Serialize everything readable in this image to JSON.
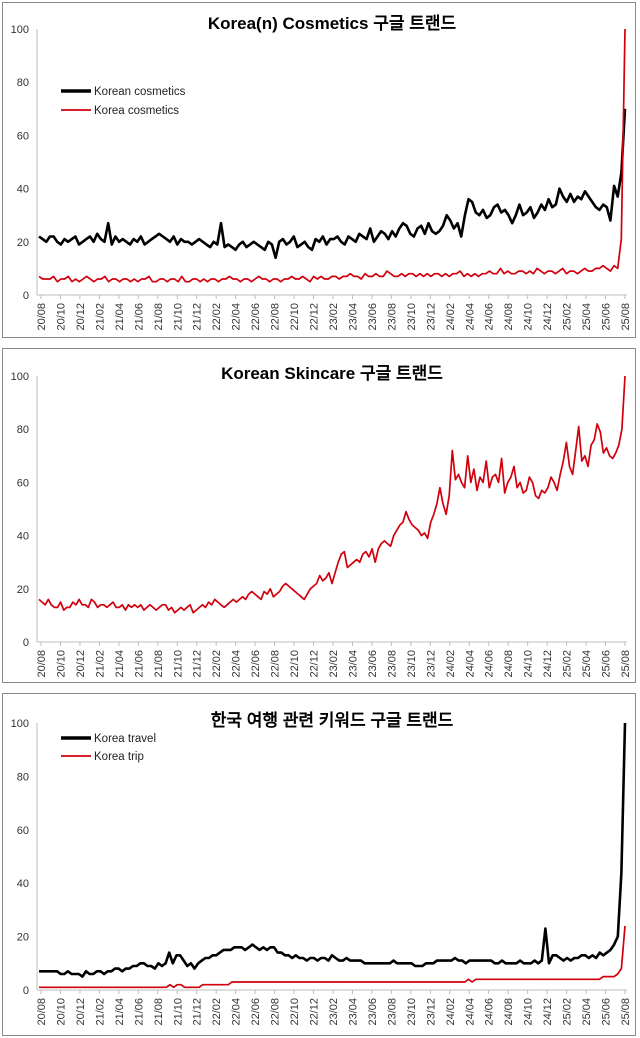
{
  "chart_data": [
    {
      "type": "line",
      "title": "Korea(n) Cosmetics 구글 트랜드",
      "ylim": [
        0,
        100
      ],
      "y_ticks": [
        0,
        20,
        40,
        60,
        80,
        100
      ],
      "x_tick_labels": [
        "20/08",
        "20/10",
        "20/12",
        "21/02",
        "21/04",
        "21/06",
        "21/08",
        "21/10",
        "21/12",
        "22/02",
        "22/04",
        "22/06",
        "22/08",
        "22/10",
        "22/12",
        "23/02",
        "23/04",
        "23/06",
        "23/08",
        "23/10",
        "23/12",
        "24/02",
        "24/04",
        "24/06",
        "24/08",
        "24/10",
        "24/12",
        "25/02",
        "25/04",
        "25/06",
        "25/08"
      ],
      "grid": false,
      "legend": "top-left",
      "series": [
        {
          "name": "Korean cosmetics",
          "color": "#000000",
          "values": [
            22,
            21,
            20,
            22,
            22,
            20,
            19,
            21,
            20,
            21,
            22,
            19,
            20,
            21,
            22,
            20,
            23,
            21,
            20,
            27,
            19,
            22,
            20,
            21,
            20,
            19,
            21,
            20,
            22,
            19,
            20,
            21,
            22,
            23,
            22,
            21,
            20,
            22,
            19,
            21,
            20,
            20,
            19,
            20,
            21,
            20,
            19,
            18,
            20,
            19,
            27,
            18,
            19,
            18,
            17,
            19,
            20,
            18,
            19,
            20,
            19,
            18,
            17,
            20,
            19,
            14,
            20,
            21,
            19,
            20,
            22,
            18,
            19,
            20,
            18,
            17,
            21,
            20,
            22,
            19,
            21,
            21,
            22,
            20,
            19,
            22,
            21,
            20,
            23,
            22,
            21,
            25,
            20,
            22,
            24,
            23,
            21,
            24,
            22,
            25,
            27,
            26,
            23,
            22,
            25,
            26,
            23,
            27,
            24,
            23,
            24,
            26,
            30,
            28,
            25,
            27,
            22,
            30,
            36,
            35,
            31,
            30,
            32,
            29,
            30,
            33,
            34,
            31,
            32,
            30,
            27,
            30,
            34,
            30,
            31,
            33,
            29,
            31,
            34,
            32,
            36,
            33,
            34,
            40,
            37,
            35,
            38,
            35,
            37,
            36,
            39,
            37,
            35,
            33,
            32,
            34,
            33,
            28,
            41,
            37,
            46,
            70
          ]
        },
        {
          "name": "Korea cosmetics",
          "color": "#d0000d",
          "values": [
            7,
            6,
            6,
            6,
            7,
            5,
            6,
            6,
            7,
            5,
            6,
            5,
            6,
            7,
            6,
            5,
            6,
            6,
            7,
            5,
            6,
            6,
            5,
            6,
            6,
            5,
            6,
            5,
            6,
            6,
            7,
            5,
            5,
            6,
            6,
            5,
            6,
            6,
            5,
            7,
            5,
            5,
            6,
            6,
            5,
            6,
            5,
            6,
            6,
            5,
            6,
            6,
            7,
            6,
            6,
            5,
            6,
            6,
            5,
            6,
            7,
            6,
            6,
            5,
            6,
            6,
            5,
            6,
            6,
            7,
            6,
            6,
            7,
            6,
            5,
            7,
            6,
            7,
            6,
            6,
            7,
            7,
            6,
            7,
            7,
            8,
            7,
            7,
            6,
            8,
            7,
            7,
            8,
            7,
            7,
            9,
            8,
            7,
            7,
            8,
            7,
            8,
            8,
            7,
            8,
            7,
            8,
            7,
            8,
            8,
            7,
            8,
            7,
            8,
            8,
            9,
            7,
            8,
            7,
            8,
            7,
            8,
            8,
            9,
            8,
            8,
            10,
            8,
            9,
            8,
            8,
            9,
            9,
            8,
            9,
            8,
            10,
            9,
            8,
            9,
            9,
            8,
            9,
            10,
            8,
            9,
            9,
            8,
            9,
            10,
            9,
            9,
            10,
            10,
            11,
            10,
            9,
            11,
            10,
            21,
            100
          ]
        }
      ]
    },
    {
      "type": "line",
      "title": "Korean Skincare 구글 트랜드",
      "ylim": [
        0,
        100
      ],
      "y_ticks": [
        0,
        20,
        40,
        60,
        80,
        100
      ],
      "x_tick_labels": [
        "20/08",
        "20/10",
        "20/12",
        "21/02",
        "21/04",
        "21/06",
        "21/08",
        "21/10",
        "21/12",
        "22/02",
        "22/04",
        "22/06",
        "22/08",
        "22/10",
        "22/12",
        "23/02",
        "23/04",
        "23/06",
        "23/08",
        "23/10",
        "23/12",
        "24/02",
        "24/04",
        "24/06",
        "24/08",
        "24/10",
        "24/12",
        "25/02",
        "25/04",
        "25/06",
        "25/08"
      ],
      "grid": false,
      "series": [
        {
          "name": "",
          "color": "#d0000d",
          "values": [
            16,
            15,
            14,
            16,
            14,
            13,
            13,
            15,
            12,
            13,
            13,
            15,
            14,
            16,
            14,
            14,
            13,
            16,
            15,
            13,
            14,
            14,
            13,
            14,
            15,
            13,
            13,
            14,
            12,
            14,
            13,
            14,
            13,
            14,
            12,
            13,
            14,
            13,
            12,
            13,
            14,
            14,
            12,
            13,
            11,
            12,
            13,
            12,
            13,
            14,
            11,
            12,
            13,
            14,
            13,
            15,
            14,
            16,
            15,
            14,
            13,
            14,
            15,
            16,
            15,
            16,
            17,
            16,
            18,
            19,
            18,
            17,
            16,
            19,
            18,
            20,
            17,
            18,
            19,
            21,
            22,
            21,
            20,
            19,
            18,
            17,
            16,
            18,
            20,
            21,
            22,
            25,
            23,
            24,
            26,
            22,
            26,
            30,
            33,
            34,
            28,
            29,
            30,
            31,
            30,
            33,
            34,
            32,
            35,
            30,
            35,
            37,
            38,
            37,
            36,
            40,
            42,
            44,
            45,
            49,
            46,
            44,
            43,
            42,
            40,
            41,
            39,
            45,
            48,
            52,
            58,
            52,
            48,
            55,
            72,
            61,
            63,
            60,
            58,
            70,
            60,
            65,
            57,
            62,
            60,
            68,
            58,
            62,
            63,
            60,
            69,
            56,
            60,
            62,
            66,
            58,
            60,
            56,
            57,
            62,
            60,
            55,
            54,
            57,
            56,
            58,
            62,
            60,
            57,
            63,
            68,
            75,
            66,
            63,
            72,
            81,
            68,
            70,
            66,
            74,
            76,
            82,
            79,
            71,
            73,
            70,
            69,
            71,
            74,
            80,
            100
          ]
        }
      ]
    },
    {
      "type": "line",
      "title": "한국 여행 관련 키워드 구글 트랜드",
      "ylim": [
        0,
        100
      ],
      "y_ticks": [
        0,
        20,
        40,
        60,
        80,
        100
      ],
      "x_tick_labels": [
        "20/08",
        "20/10",
        "20/12",
        "21/02",
        "21/04",
        "21/06",
        "21/08",
        "21/10",
        "21/12",
        "22/02",
        "22/04",
        "22/06",
        "22/08",
        "22/10",
        "22/12",
        "23/02",
        "23/04",
        "23/06",
        "23/08",
        "23/10",
        "23/12",
        "24/02",
        "24/04",
        "24/06",
        "24/08",
        "24/10",
        "24/12",
        "25/02",
        "25/04",
        "25/06",
        "25/08"
      ],
      "grid": false,
      "legend": "top-left",
      "series": [
        {
          "name": "Korea travel",
          "color": "#000000",
          "values": [
            7,
            7,
            7,
            7,
            7,
            7,
            6,
            6,
            7,
            6,
            6,
            6,
            5,
            7,
            6,
            6,
            7,
            7,
            6,
            7,
            7,
            8,
            8,
            7,
            8,
            8,
            9,
            9,
            10,
            10,
            9,
            9,
            8,
            10,
            9,
            10,
            14,
            10,
            13,
            13,
            11,
            9,
            10,
            8,
            10,
            11,
            12,
            12,
            13,
            13,
            14,
            15,
            15,
            15,
            16,
            16,
            16,
            15,
            16,
            17,
            16,
            15,
            16,
            15,
            16,
            16,
            14,
            14,
            13,
            13,
            12,
            13,
            12,
            12,
            11,
            12,
            12,
            11,
            12,
            12,
            11,
            13,
            12,
            11,
            11,
            12,
            11,
            11,
            11,
            11,
            10,
            10,
            10,
            10,
            10,
            10,
            10,
            10,
            11,
            10,
            10,
            10,
            10,
            10,
            9,
            9,
            9,
            10,
            10,
            10,
            11,
            11,
            11,
            11,
            11,
            12,
            11,
            11,
            10,
            11,
            11,
            11,
            11,
            11,
            11,
            11,
            10,
            10,
            11,
            10,
            10,
            10,
            10,
            11,
            10,
            10,
            10,
            11,
            10,
            11,
            23,
            10,
            13,
            13,
            12,
            11,
            12,
            11,
            12,
            12,
            13,
            13,
            12,
            13,
            12,
            14,
            13,
            14,
            15,
            17,
            20,
            44,
            100
          ]
        },
        {
          "name": "Korea trip",
          "color": "#d0000d",
          "values": [
            1,
            1,
            1,
            1,
            1,
            1,
            1,
            1,
            1,
            1,
            1,
            1,
            1,
            1,
            1,
            1,
            1,
            1,
            1,
            1,
            1,
            1,
            1,
            1,
            1,
            1,
            1,
            1,
            1,
            1,
            1,
            1,
            1,
            1,
            1,
            1,
            2,
            1,
            2,
            2,
            1,
            1,
            1,
            1,
            1,
            2,
            2,
            2,
            2,
            2,
            2,
            2,
            2,
            3,
            3,
            3,
            3,
            3,
            3,
            3,
            3,
            3,
            3,
            3,
            3,
            3,
            3,
            3,
            3,
            3,
            3,
            3,
            3,
            3,
            3,
            3,
            3,
            3,
            3,
            3,
            3,
            3,
            3,
            3,
            3,
            3,
            3,
            3,
            3,
            3,
            3,
            3,
            3,
            3,
            3,
            3,
            3,
            3,
            3,
            3,
            3,
            3,
            3,
            3,
            3,
            3,
            3,
            3,
            3,
            3,
            3,
            3,
            3,
            3,
            3,
            3,
            3,
            3,
            4,
            3,
            4,
            4,
            4,
            4,
            4,
            4,
            4,
            4,
            4,
            4,
            4,
            4,
            4,
            4,
            4,
            4,
            4,
            4,
            4,
            4,
            4,
            4,
            4,
            4,
            4,
            4,
            4,
            4,
            4,
            4,
            4,
            4,
            4,
            4,
            4,
            5,
            5,
            5,
            5,
            6,
            8,
            24
          ]
        }
      ]
    }
  ]
}
